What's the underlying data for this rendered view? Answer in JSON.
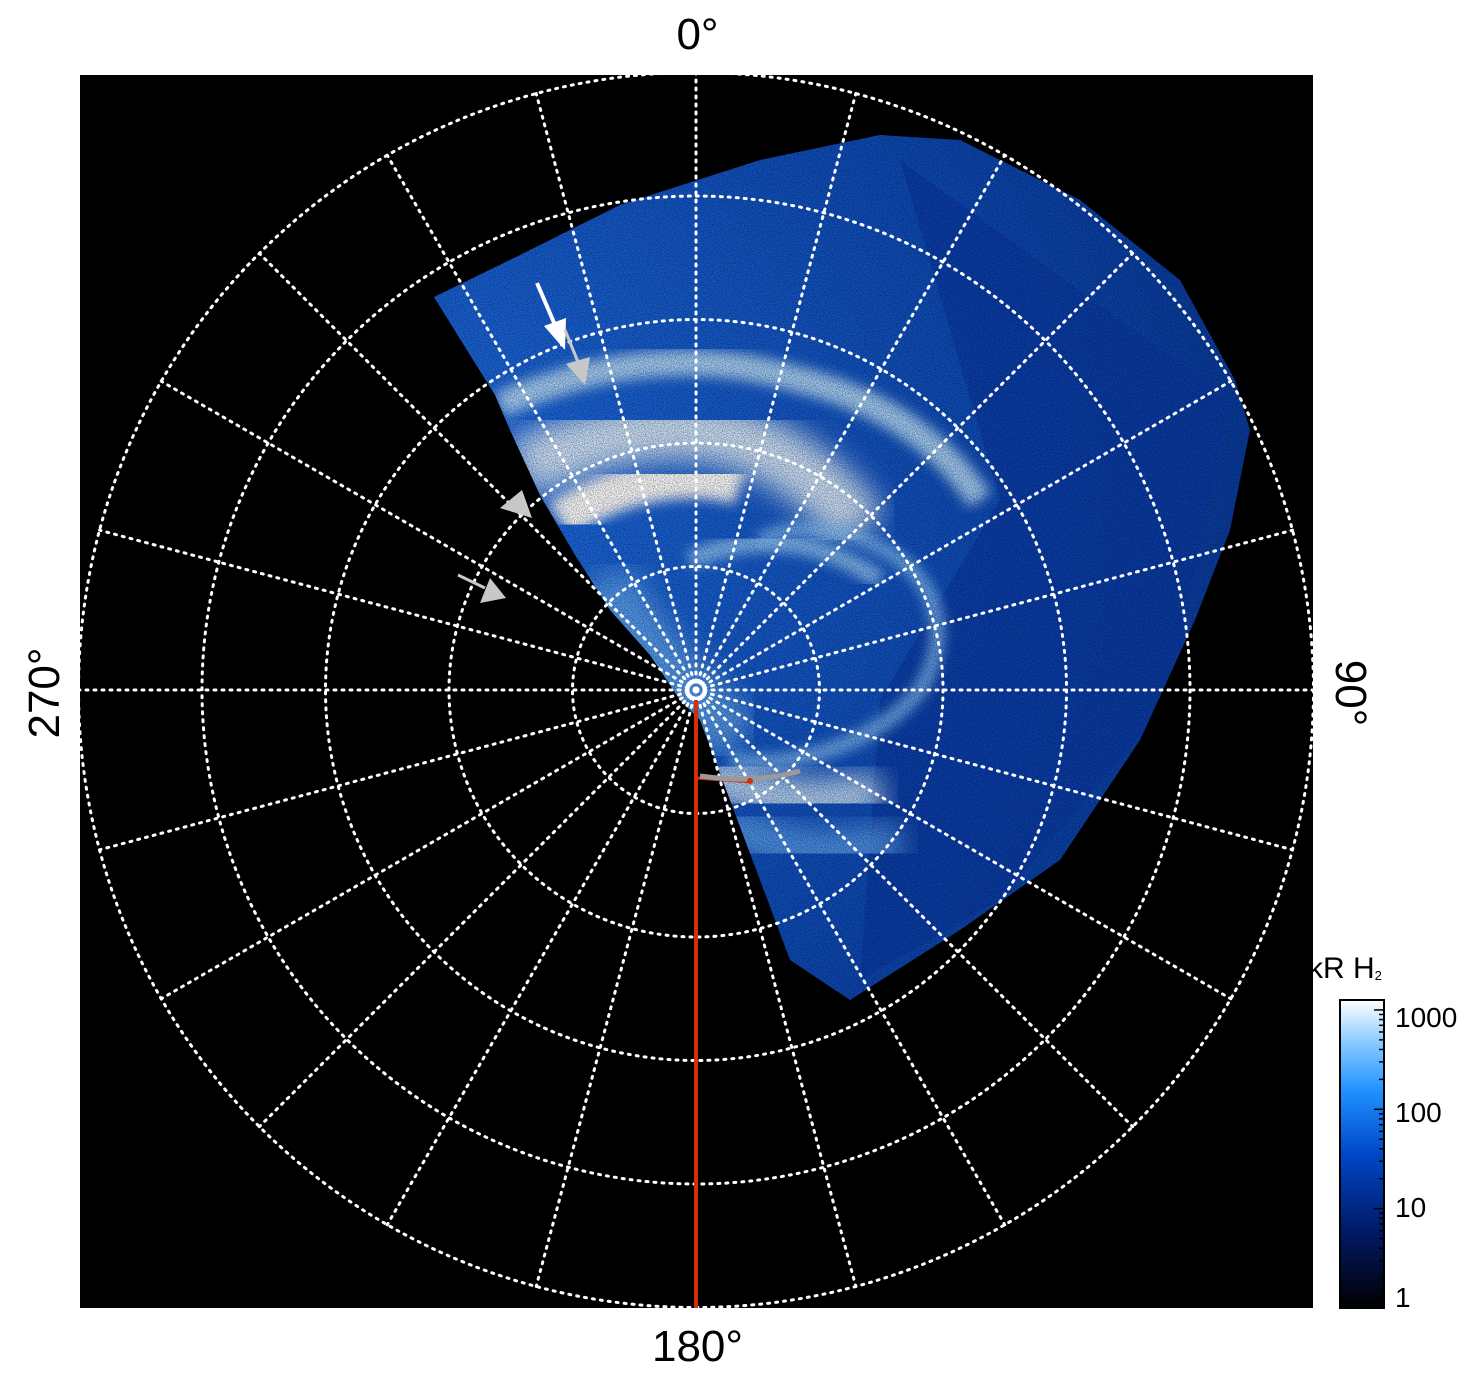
{
  "figure": {
    "axis_labels": {
      "top": "0°",
      "right": "90°",
      "bottom": "180°",
      "left": "270°"
    },
    "colorbar": {
      "title": "kR H",
      "title_subscript": "2",
      "scale": "log",
      "ticks": [
        "1000",
        "100",
        "10",
        "1"
      ],
      "colors": [
        "#000000",
        "#001a66",
        "#0047c8",
        "#1e90ff",
        "#7fc6ff",
        "#ffffff"
      ]
    },
    "grid": {
      "style": "dotted",
      "color": "#ffffff",
      "rings": 5,
      "meridians": 24
    },
    "background": "#000000",
    "aurora_colors": {
      "dim": "#0a3aa8",
      "mid": "#1f7fff",
      "bright": "#cfeaff"
    },
    "annotations": {
      "meridian_line_color": "#d42f0a",
      "track_color": "#9a9a9a",
      "arrow_colors": [
        "#ffffff",
        "#c8c8c8"
      ],
      "icons": [
        "white-arrow-icon",
        "gray-arrow-icon"
      ]
    }
  }
}
